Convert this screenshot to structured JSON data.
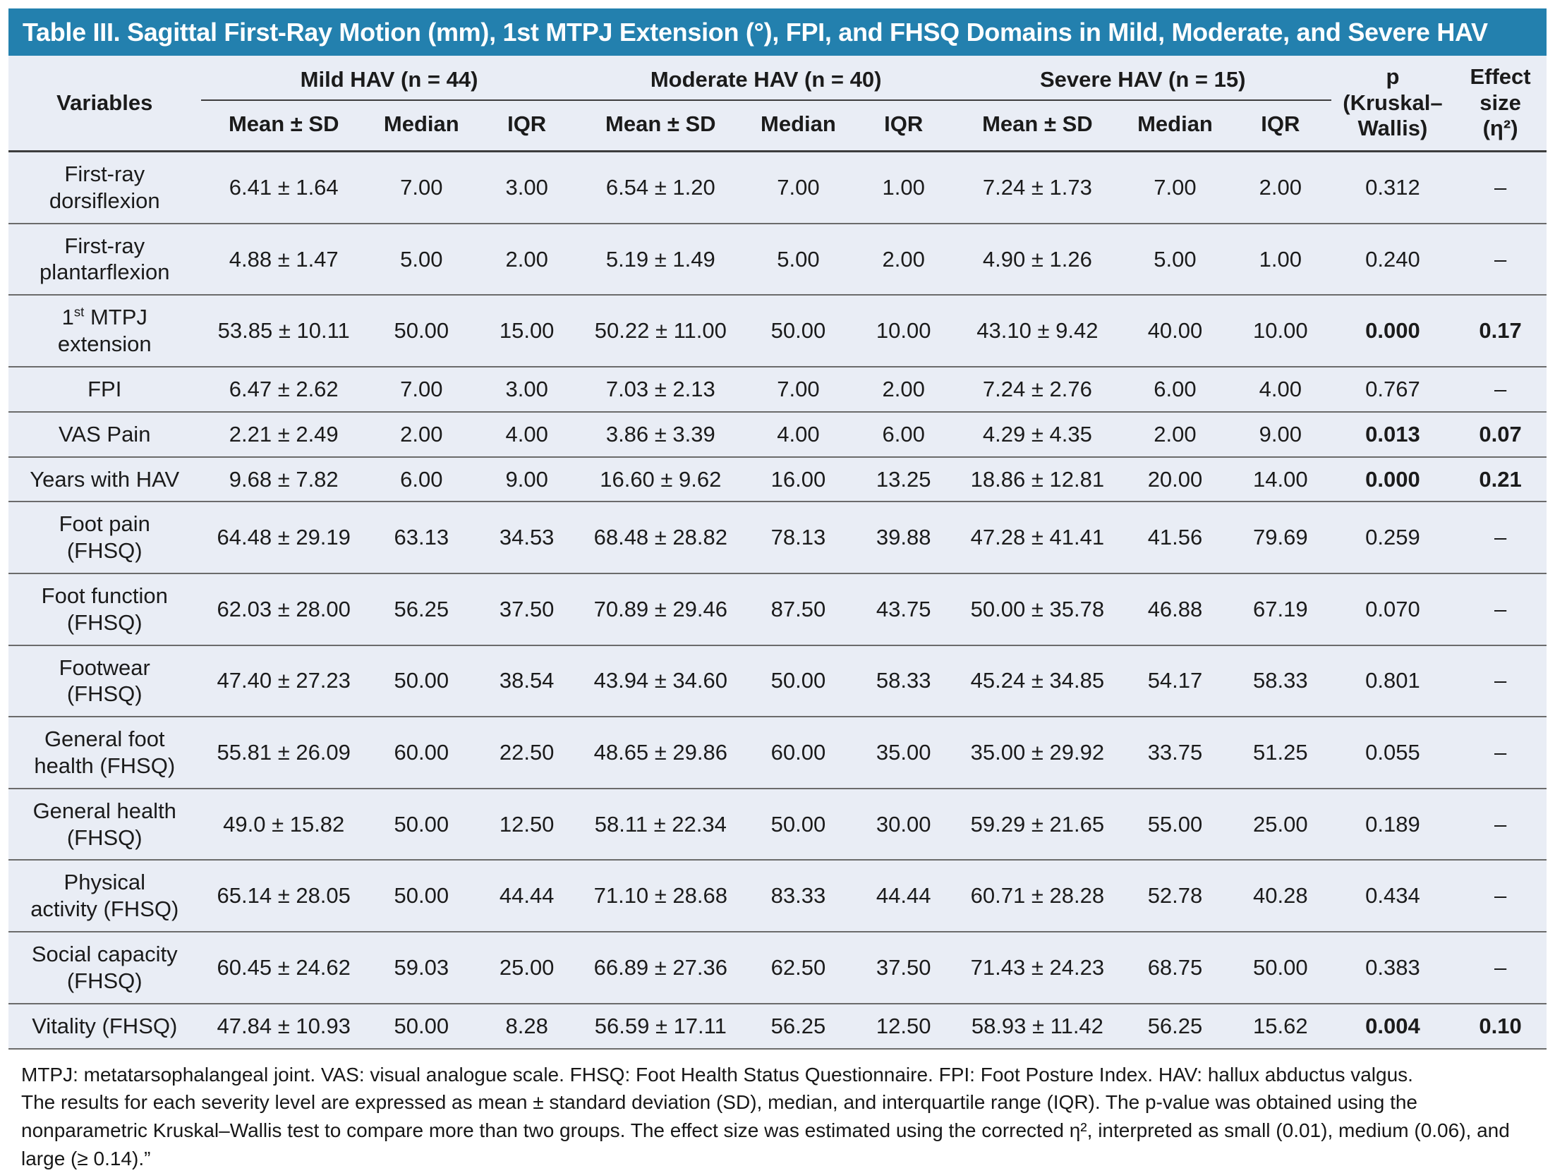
{
  "title": "Table III. Sagittal First-Ray Motion (mm), 1st MTPJ Extension (°), FPI, and FHSQ Domains in Mild, Moderate, and Severe HAV",
  "colors": {
    "title_bar_background": "#2380ae",
    "title_text": "#ffffff",
    "table_background": "#e9edf5",
    "body_text": "#1b1b1b",
    "rule_lines": "#6b6b6b"
  },
  "table": {
    "variables_header": "Variables",
    "groups": [
      {
        "label": "Mild HAV (n = 44)"
      },
      {
        "label": "Moderate HAV (n = 40)"
      },
      {
        "label": "Severe HAV (n = 15)"
      }
    ],
    "sub_headers": [
      "Mean ± SD",
      "Median",
      "IQR"
    ],
    "p_header": "p\n(Kruskal–\nWallis)",
    "effect_header": "Effect\nsize\n(η²)",
    "rows": [
      {
        "label": "First-ray\ndorsiflexion",
        "sup": false,
        "mild": [
          "6.41 ± 1.64",
          "7.00",
          "3.00"
        ],
        "moderate": [
          "6.54 ± 1.20",
          "7.00",
          "1.00"
        ],
        "severe": [
          "7.24 ± 1.73",
          "7.00",
          "2.00"
        ],
        "p": "0.312",
        "effect": "–",
        "bold": false
      },
      {
        "label": "First-ray\nplantarflexion",
        "sup": false,
        "mild": [
          "4.88 ± 1.47",
          "5.00",
          "2.00"
        ],
        "moderate": [
          "5.19 ± 1.49",
          "5.00",
          "2.00"
        ],
        "severe": [
          "4.90 ± 1.26",
          "5.00",
          "1.00"
        ],
        "p": "0.240",
        "effect": "–",
        "bold": false
      },
      {
        "label": "1st MTPJ\nextension",
        "sup": true,
        "mild": [
          "53.85 ± 10.11",
          "50.00",
          "15.00"
        ],
        "moderate": [
          "50.22 ± 11.00",
          "50.00",
          "10.00"
        ],
        "severe": [
          "43.10 ± 9.42",
          "40.00",
          "10.00"
        ],
        "p": "0.000",
        "effect": "0.17",
        "bold": true
      },
      {
        "label": "FPI",
        "sup": false,
        "mild": [
          "6.47 ± 2.62",
          "7.00",
          "3.00"
        ],
        "moderate": [
          "7.03 ± 2.13",
          "7.00",
          "2.00"
        ],
        "severe": [
          "7.24 ± 2.76",
          "6.00",
          "4.00"
        ],
        "p": "0.767",
        "effect": "–",
        "bold": false
      },
      {
        "label": "VAS Pain",
        "sup": false,
        "mild": [
          "2.21 ± 2.49",
          "2.00",
          "4.00"
        ],
        "moderate": [
          "3.86 ± 3.39",
          "4.00",
          "6.00"
        ],
        "severe": [
          "4.29 ± 4.35",
          "2.00",
          "9.00"
        ],
        "p": "0.013",
        "effect": "0.07",
        "bold": true
      },
      {
        "label": "Years with HAV",
        "sup": false,
        "mild": [
          "9.68 ± 7.82",
          "6.00",
          "9.00"
        ],
        "moderate": [
          "16.60 ± 9.62",
          "16.00",
          "13.25"
        ],
        "severe": [
          "18.86 ± 12.81",
          "20.00",
          "14.00"
        ],
        "p": "0.000",
        "effect": "0.21",
        "bold": true
      },
      {
        "label": "Foot pain\n(FHSQ)",
        "sup": false,
        "mild": [
          "64.48 ± 29.19",
          "63.13",
          "34.53"
        ],
        "moderate": [
          "68.48 ± 28.82",
          "78.13",
          "39.88"
        ],
        "severe": [
          "47.28 ± 41.41",
          "41.56",
          "79.69"
        ],
        "p": "0.259",
        "effect": "–",
        "bold": false
      },
      {
        "label": "Foot function\n(FHSQ)",
        "sup": false,
        "mild": [
          "62.03 ± 28.00",
          "56.25",
          "37.50"
        ],
        "moderate": [
          "70.89 ± 29.46",
          "87.50",
          "43.75"
        ],
        "severe": [
          "50.00 ± 35.78",
          "46.88",
          "67.19"
        ],
        "p": "0.070",
        "effect": "–",
        "bold": false
      },
      {
        "label": "Footwear\n(FHSQ)",
        "sup": false,
        "mild": [
          "47.40 ± 27.23",
          "50.00",
          "38.54"
        ],
        "moderate": [
          "43.94 ± 34.60",
          "50.00",
          "58.33"
        ],
        "severe": [
          "45.24 ± 34.85",
          "54.17",
          "58.33"
        ],
        "p": "0.801",
        "effect": "–",
        "bold": false
      },
      {
        "label": "General foot\nhealth (FHSQ)",
        "sup": false,
        "mild": [
          "55.81 ± 26.09",
          "60.00",
          "22.50"
        ],
        "moderate": [
          "48.65 ± 29.86",
          "60.00",
          "35.00"
        ],
        "severe": [
          "35.00 ± 29.92",
          "33.75",
          "51.25"
        ],
        "p": "0.055",
        "effect": "–",
        "bold": false
      },
      {
        "label": "General health\n(FHSQ)",
        "sup": false,
        "mild": [
          "49.0 ± 15.82",
          "50.00",
          "12.50"
        ],
        "moderate": [
          "58.11 ± 22.34",
          "50.00",
          "30.00"
        ],
        "severe": [
          "59.29 ± 21.65",
          "55.00",
          "25.00"
        ],
        "p": "0.189",
        "effect": "–",
        "bold": false
      },
      {
        "label": "Physical\nactivity (FHSQ)",
        "sup": false,
        "mild": [
          "65.14 ± 28.05",
          "50.00",
          "44.44"
        ],
        "moderate": [
          "71.10 ± 28.68",
          "83.33",
          "44.44"
        ],
        "severe": [
          "60.71 ± 28.28",
          "52.78",
          "40.28"
        ],
        "p": "0.434",
        "effect": "–",
        "bold": false
      },
      {
        "label": "Social capacity\n(FHSQ)",
        "sup": false,
        "mild": [
          "60.45 ± 24.62",
          "59.03",
          "25.00"
        ],
        "moderate": [
          "66.89 ± 27.36",
          "62.50",
          "37.50"
        ],
        "severe": [
          "71.43 ± 24.23",
          "68.75",
          "50.00"
        ],
        "p": "0.383",
        "effect": "–",
        "bold": false
      },
      {
        "label": "Vitality (FHSQ)",
        "sup": false,
        "mild": [
          "47.84 ± 10.93",
          "50.00",
          "8.28"
        ],
        "moderate": [
          "56.59 ± 17.11",
          "56.25",
          "12.50"
        ],
        "severe": [
          "58.93 ± 11.42",
          "56.25",
          "15.62"
        ],
        "p": "0.004",
        "effect": "0.10",
        "bold": true
      }
    ]
  },
  "footnotes": {
    "abbreviations": "MTPJ: metatarsophalangeal joint. VAS: visual analogue scale. FHSQ: Foot Health Status Questionnaire. FPI: Foot Posture Index. HAV: hallux abductus valgus.",
    "methods": "The results for each severity level are expressed as mean ± standard deviation (SD), median, and interquartile range (IQR). The p-value was obtained using the nonparametric Kruskal–Wallis test to compare more than two groups. The effect size was estimated using the corrected η², interpreted as small (0.01), medium (0.06), and large (≥ 0.14).”"
  }
}
